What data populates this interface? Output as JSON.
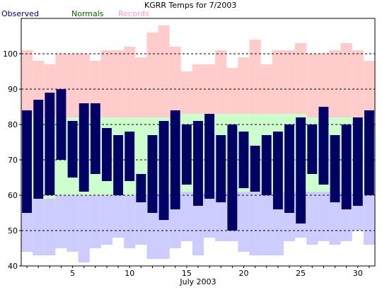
{
  "chart_data": {
    "type": "bar",
    "title": "KGRR Temps for 7/2003",
    "xlabel": "July 2003",
    "ylabel": "",
    "xlim": [
      0.5,
      31.5
    ],
    "ylim": [
      40,
      110
    ],
    "y_ticks": [
      40,
      50,
      60,
      70,
      80,
      90,
      100
    ],
    "x_ticks": [
      5,
      10,
      15,
      20,
      25,
      30
    ],
    "grid": "horizontal dashed at 50,60,70,80,90,100",
    "legend_placement": "top-left",
    "colors": {
      "observed": "#000066",
      "normals": "#ccffcc",
      "records": "#ffcccc",
      "records_low": "#ccccff",
      "observed_label": "#000066",
      "normals_label": "#006600",
      "records_label": "#ff99cc"
    },
    "legend": [
      "Observed",
      "Normals",
      "Records"
    ],
    "days": [
      1,
      2,
      3,
      4,
      5,
      6,
      7,
      8,
      9,
      10,
      11,
      12,
      13,
      14,
      15,
      16,
      17,
      18,
      19,
      20,
      21,
      22,
      23,
      24,
      25,
      26,
      27,
      28,
      29,
      30,
      31
    ],
    "series": [
      {
        "name": "Observed",
        "kind": "range",
        "low": [
          55,
          59,
          60,
          70,
          65,
          61,
          66,
          64,
          60,
          64,
          58,
          55,
          53,
          56,
          63,
          57,
          59,
          58,
          50,
          62,
          61,
          60,
          56,
          55,
          52,
          66,
          63,
          58,
          56,
          57,
          60
        ],
        "high": [
          84,
          87,
          89,
          90,
          81,
          86,
          86,
          79,
          77,
          78,
          66,
          77,
          81,
          84,
          80,
          81,
          83,
          77,
          80,
          78,
          74,
          77,
          78,
          80,
          82,
          80,
          85,
          77,
          80,
          82,
          84
        ]
      },
      {
        "name": "Normals",
        "kind": "range",
        "low": [
          59,
          59,
          59,
          60,
          60,
          60,
          60,
          60,
          60,
          60,
          60,
          60,
          60,
          60,
          61,
          61,
          61,
          61,
          61,
          61,
          61,
          61,
          61,
          61,
          61,
          61,
          61,
          61,
          61,
          60,
          60
        ],
        "high": [
          82,
          82,
          82,
          82,
          82,
          82,
          82,
          82,
          82,
          82,
          82,
          82,
          82,
          82,
          83,
          83,
          83,
          83,
          83,
          83,
          83,
          83,
          83,
          83,
          83,
          82,
          82,
          82,
          82,
          82,
          82
        ]
      },
      {
        "name": "Records",
        "kind": "range",
        "low": [
          44,
          43,
          43,
          45,
          44,
          41,
          45,
          46,
          48,
          45,
          46,
          42,
          42,
          45,
          47,
          43,
          48,
          47,
          47,
          44,
          43,
          43,
          43,
          47,
          48,
          46,
          47,
          46,
          47,
          50,
          46
        ],
        "high": [
          101,
          98,
          97,
          100,
          100,
          100,
          98,
          101,
          101,
          102,
          99,
          106,
          108,
          102,
          95,
          97,
          97,
          101,
          96,
          99,
          104,
          97,
          101,
          101,
          103,
          100,
          100,
          101,
          103,
          101,
          98
        ]
      }
    ]
  }
}
